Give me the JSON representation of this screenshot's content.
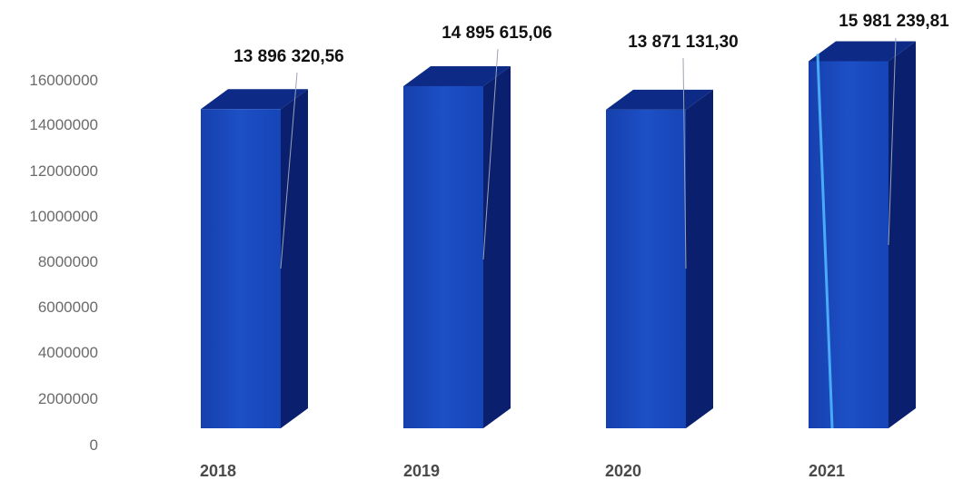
{
  "chart_data": {
    "type": "bar",
    "categories": [
      "2018",
      "2019",
      "2020",
      "2021"
    ],
    "values": [
      13896320.56,
      14895615.06,
      13871131.3,
      15981239.81
    ],
    "data_labels": [
      "13 896 320,56",
      "14 895 615,06",
      "13 871 131,30",
      "15 981 239,81"
    ],
    "y_ticks": [
      "0",
      "2000000",
      "4000000",
      "6000000",
      "8000000",
      "10000000",
      "12000000",
      "14000000",
      "16000000"
    ],
    "ylim": [
      0,
      16000000
    ],
    "grid": false,
    "legend": "none",
    "style": "3d-column",
    "colors": {
      "front": "#1846b8",
      "side": "#0a1f6e",
      "top": "#0d2b86"
    }
  }
}
